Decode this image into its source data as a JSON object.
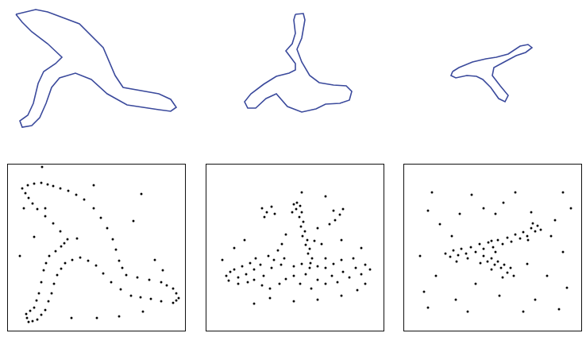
{
  "chart_data": [
    {
      "type": "outline",
      "color": "#3b4a9c",
      "marker": "none",
      "line_style": "solid",
      "tick_labels": false,
      "xlim": [
        0,
        246
      ],
      "ylim": [
        0,
        185
      ],
      "x": [
        20,
        28,
        40,
        60,
        78,
        70,
        55,
        48,
        42,
        35,
        25,
        28,
        40,
        50,
        58,
        65,
        75,
        95,
        115,
        135,
        160,
        200,
        215,
        222,
        215,
        200,
        155,
        145,
        130,
        100,
        60,
        45
      ],
      "values": [
        18,
        28,
        40,
        55,
        72,
        80,
        90,
        105,
        130,
        145,
        152,
        160,
        158,
        148,
        130,
        110,
        98,
        92,
        100,
        118,
        132,
        138,
        140,
        135,
        125,
        118,
        110,
        95,
        60,
        30,
        15,
        12
      ]
    },
    {
      "type": "outline",
      "color": "#3b4a9c",
      "marker": "none",
      "line_style": "solid",
      "tick_labels": false,
      "xlim": [
        0,
        246
      ],
      "ylim": [
        0,
        185
      ],
      "x": [
        126,
        136,
        138,
        134,
        128,
        134,
        144,
        156,
        174,
        190,
        197,
        194,
        182,
        164,
        152,
        134,
        116,
        102,
        89,
        76,
        66,
        62,
        70,
        86,
        102,
        118,
        126,
        126,
        120,
        114,
        122,
        126,
        124
      ],
      "values": [
        18,
        17,
        25,
        48,
        62,
        78,
        95,
        104,
        107,
        108,
        115,
        126,
        130,
        131,
        137,
        141,
        134,
        118,
        124,
        136,
        136,
        128,
        118,
        106,
        96,
        92,
        88,
        80,
        72,
        64,
        55,
        42,
        25
      ]
    },
    {
      "type": "outline",
      "color": "#3b4a9c",
      "marker": "none",
      "line_style": "solid",
      "tick_labels": false,
      "xlim": [
        0,
        246
      ],
      "ylim": [
        0,
        185
      ],
      "x": [
        78,
        86,
        103,
        120,
        133,
        148,
        163,
        173,
        178,
        170,
        158,
        143,
        130,
        128,
        138,
        148,
        144,
        136,
        126,
        116,
        108,
        96,
        82,
        76
      ],
      "values": [
        90,
        85,
        78,
        74,
        72,
        68,
        58,
        56,
        60,
        66,
        70,
        78,
        85,
        95,
        108,
        120,
        128,
        124,
        110,
        100,
        96,
        95,
        98,
        95
      ]
    },
    {
      "type": "scatter",
      "color": "#000000",
      "marker": "dot",
      "tick_labels": false,
      "xlim": [
        0,
        223
      ],
      "ylim": [
        0,
        209
      ],
      "x": [
        18,
        22,
        26,
        31,
        37,
        47,
        57,
        66,
        75,
        71,
        67,
        60,
        52,
        48,
        45,
        42,
        39,
        36,
        33,
        28,
        23,
        24,
        26,
        31,
        37,
        42,
        47,
        51,
        55,
        58,
        62,
        67,
        72,
        81,
        91,
        101,
        111,
        120,
        130,
        142,
        155,
        167,
        180,
        193,
        208,
        212,
        215,
        212,
        208,
        200,
        193,
        178,
        163,
        149,
        144,
        140,
        136,
        132,
        125,
        117,
        108,
        96,
        86,
        76,
        66,
        57,
        50,
        42,
        33,
        25,
        43,
        108,
        168,
        20,
        47,
        33,
        15,
        158,
        87,
        195,
        185,
        170,
        140,
        112,
        80
      ],
      "values": [
        30,
        36,
        42,
        49,
        56,
        65,
        74,
        84,
        94,
        99,
        103,
        109,
        115,
        124,
        133,
        148,
        162,
        171,
        180,
        184,
        188,
        193,
        198,
        197,
        195,
        189,
        183,
        172,
        162,
        150,
        139,
        131,
        124,
        120,
        117,
        121,
        127,
        137,
        148,
        157,
        165,
        167,
        169,
        172,
        174,
        171,
        168,
        162,
        156,
        152,
        148,
        145,
        142,
        139,
        130,
        121,
        107,
        94,
        80,
        67,
        55,
        44,
        38,
        33,
        30,
        27,
        25,
        23,
        24,
        26,
        3,
        26,
        37,
        55,
        55,
        91,
        115,
        71,
        93,
        133,
        120,
        185,
        191,
        193,
        193
      ]
    },
    {
      "type": "scatter",
      "color": "#000000",
      "marker": "dot",
      "tick_labels": false,
      "xlim": [
        0,
        223
      ],
      "ylim": [
        0,
        209
      ],
      "x": [
        110,
        114,
        118,
        113,
        120,
        117,
        122,
        119,
        124,
        121,
        127,
        125,
        130,
        128,
        133,
        131,
        136,
        108,
        70,
        76,
        82,
        73,
        86,
        160,
        168,
        162,
        172,
        155,
        95,
        140,
        145,
        100,
        150,
        25,
        30,
        28,
        35,
        40,
        45,
        50,
        55,
        60,
        62,
        68,
        72,
        78,
        82,
        85,
        90,
        94,
        98,
        40,
        52,
        60,
        70,
        80,
        92,
        100,
        110,
        118,
        125,
        132,
        140,
        150,
        158,
        165,
        172,
        180,
        188,
        195,
        200,
        206,
        185,
        170,
        160,
        150,
        140,
        130,
        120,
        110,
        60,
        80,
        110,
        140,
        170,
        190,
        200,
        20,
        35,
        48,
        170,
        195,
        120,
        150
      ],
      "values": [
        50,
        48,
        52,
        56,
        60,
        66,
        72,
        78,
        84,
        90,
        95,
        101,
        106,
        112,
        118,
        124,
        96,
        60,
        55,
        60,
        53,
        66,
        62,
        58,
        63,
        70,
        56,
        75,
        100,
        80,
        100,
        88,
        118,
        140,
        135,
        146,
        132,
        142,
        128,
        138,
        124,
        132,
        118,
        126,
        140,
        115,
        130,
        120,
        108,
        126,
        118,
        150,
        148,
        145,
        152,
        156,
        150,
        144,
        140,
        150,
        138,
        156,
        145,
        150,
        140,
        148,
        135,
        142,
        130,
        138,
        126,
        132,
        118,
        120,
        125,
        130,
        128,
        130,
        125,
        128,
        175,
        168,
        172,
        170,
        165,
        158,
        150,
        120,
        105,
        95,
        95,
        105,
        35,
        40
      ]
    },
    {
      "type": "scatter",
      "color": "#000000",
      "marker": "dot",
      "tick_labels": false,
      "xlim": [
        0,
        223
      ],
      "ylim": [
        0,
        209
      ],
      "x": [
        52,
        58,
        62,
        68,
        72,
        78,
        84,
        90,
        95,
        100,
        106,
        112,
        118,
        124,
        130,
        135,
        140,
        146,
        150,
        155,
        160,
        165,
        168,
        172,
        162,
        156,
        110,
        80,
        66,
        100,
        105,
        110,
        114,
        118,
        122,
        126,
        130,
        134,
        138,
        124,
        110,
        96,
        115,
        35,
        85,
        140,
        200,
        30,
        70,
        115,
        160,
        210,
        45,
        100,
        185,
        20,
        200,
        40,
        180,
        25,
        65,
        120,
        165,
        205,
        30,
        80,
        150,
        195,
        60,
        90,
        155,
        190,
        125
      ],
      "values": [
        112,
        116,
        108,
        114,
        106,
        112,
        104,
        110,
        100,
        106,
        98,
        104,
        95,
        100,
        92,
        97,
        88,
        93,
        85,
        90,
        80,
        84,
        77,
        82,
        74,
        95,
        96,
        118,
        122,
        115,
        122,
        118,
        126,
        122,
        130,
        126,
        136,
        130,
        140,
        142,
        132,
        124,
        110,
        35,
        38,
        35,
        35,
        58,
        62,
        62,
        60,
        55,
        75,
        55,
        90,
        115,
        110,
        140,
        140,
        160,
        170,
        165,
        170,
        155,
        180,
        185,
        185,
        182,
        90,
        150,
        125,
        70,
        48
      ]
    }
  ]
}
